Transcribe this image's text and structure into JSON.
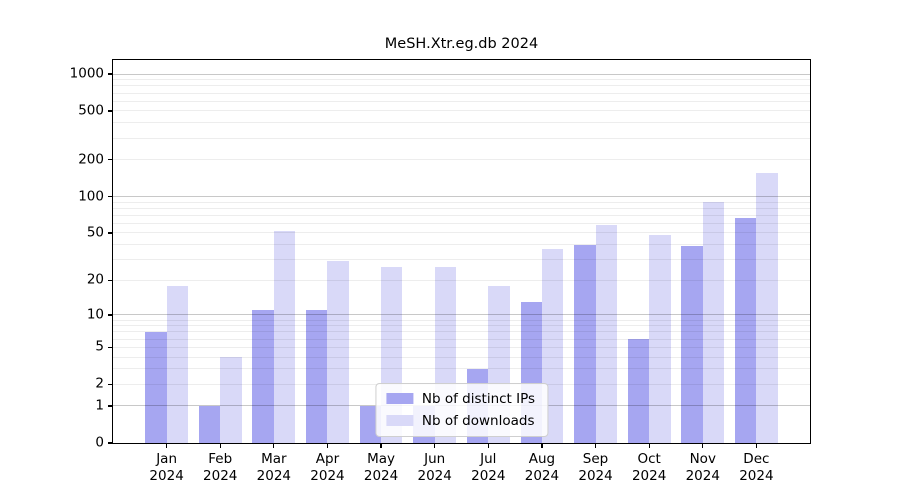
{
  "chart_data": {
    "type": "bar",
    "title": "MeSH.Xtr.eg.db 2024",
    "categories": [
      "Jan",
      "Feb",
      "Mar",
      "Apr",
      "May",
      "Jun",
      "Jul",
      "Aug",
      "Sep",
      "Oct",
      "Nov",
      "Dec"
    ],
    "category_sublabel": "2024",
    "series": [
      {
        "name": "Nb of distinct IPs",
        "color": "#a6a6f1",
        "values": [
          7,
          1,
          11,
          11,
          1,
          1,
          3,
          13,
          40,
          6,
          39,
          67
        ]
      },
      {
        "name": "Nb of downloads",
        "color": "#d9d9f8",
        "values": [
          18,
          4,
          52,
          29,
          26,
          26,
          18,
          37,
          58,
          48,
          90,
          157
        ]
      }
    ],
    "yscale": "log1p",
    "yticks": [
      0,
      1,
      2,
      5,
      10,
      20,
      50,
      100,
      200,
      500,
      1000
    ],
    "ylim": [
      0,
      1300
    ],
    "xlabel": "",
    "ylabel": "",
    "grid": true,
    "legend_position": "lower center",
    "colors": {
      "grid_major": "#c8c8c8",
      "grid_minor": "#ededed",
      "axis": "#000000",
      "background": "#ffffff"
    }
  }
}
